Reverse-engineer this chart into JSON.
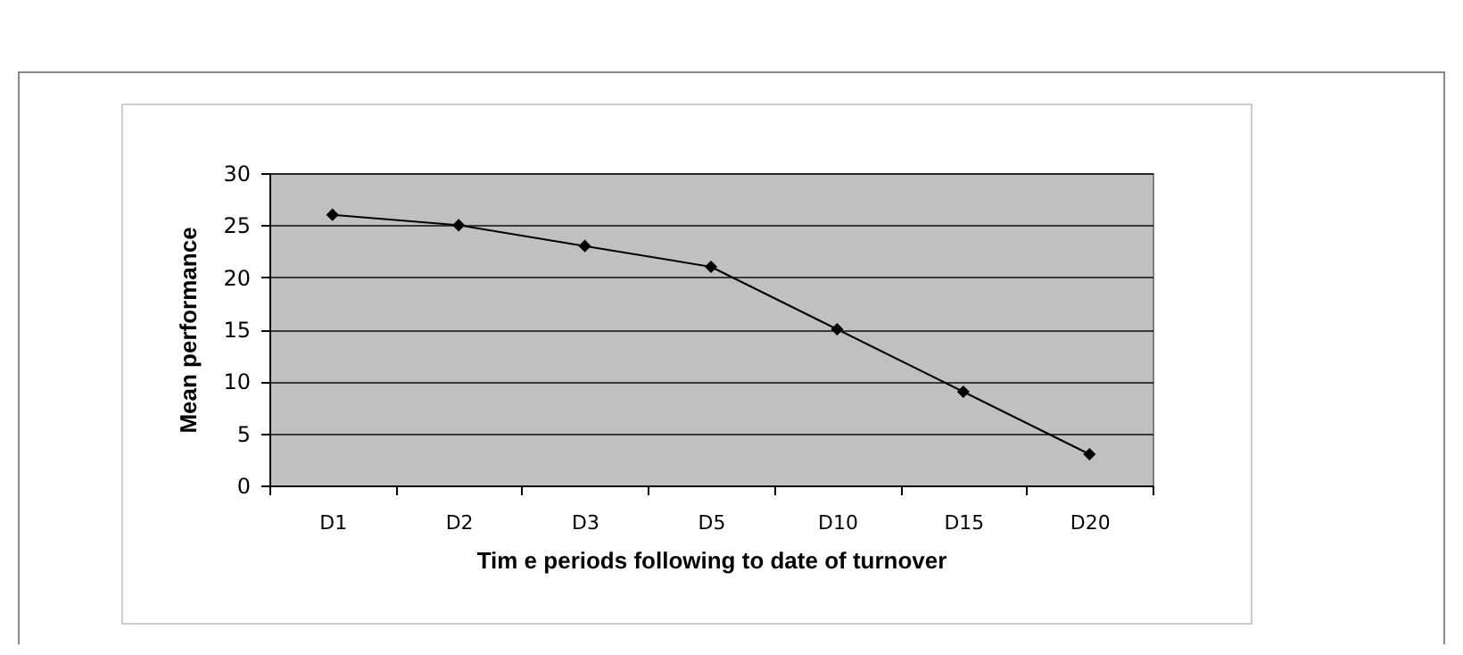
{
  "chart_data": {
    "type": "line",
    "xlabel": "Tim e periods following to date of turnover",
    "ylabel": "Mean performance",
    "categories": [
      "D1",
      "D2",
      "D3",
      "D5",
      "D10",
      "D15",
      "D20"
    ],
    "series": [
      {
        "color": "#000000",
        "values": [
          26,
          25,
          23,
          21,
          15,
          9,
          3
        ]
      }
    ],
    "ylim": [
      0,
      30
    ],
    "yticks": [
      0,
      5,
      10,
      15,
      20,
      25,
      30
    ],
    "grid": "y",
    "marker": "diamond",
    "line_style": "solid",
    "legend": false
  }
}
